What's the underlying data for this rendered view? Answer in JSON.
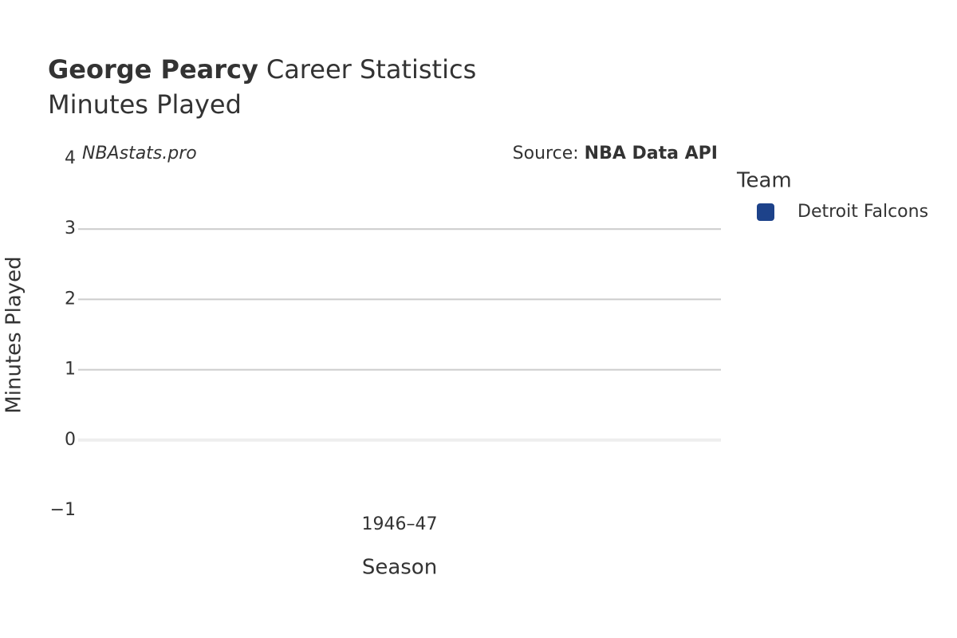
{
  "chart_data": {
    "type": "bar",
    "title": {
      "bold": "George Pearcy",
      "rest": "Career Statistics"
    },
    "subtitle": "Minutes Played",
    "watermark": "NBAstats.pro",
    "source": {
      "label": "Source:",
      "name": "NBA Data API"
    },
    "x_label": "Season",
    "y_label": "Minutes Played",
    "categories": [
      "1946–47"
    ],
    "series": [
      {
        "name": "Detroit Falcons",
        "color": "#1d428a",
        "values": [
          0
        ]
      }
    ],
    "legend_title": "Team",
    "legend_position": "right",
    "ylim": [
      -1,
      4
    ],
    "yticks": [
      {
        "value": -1,
        "label": "−1"
      },
      0,
      1,
      2,
      3,
      4
    ],
    "grid": true
  }
}
